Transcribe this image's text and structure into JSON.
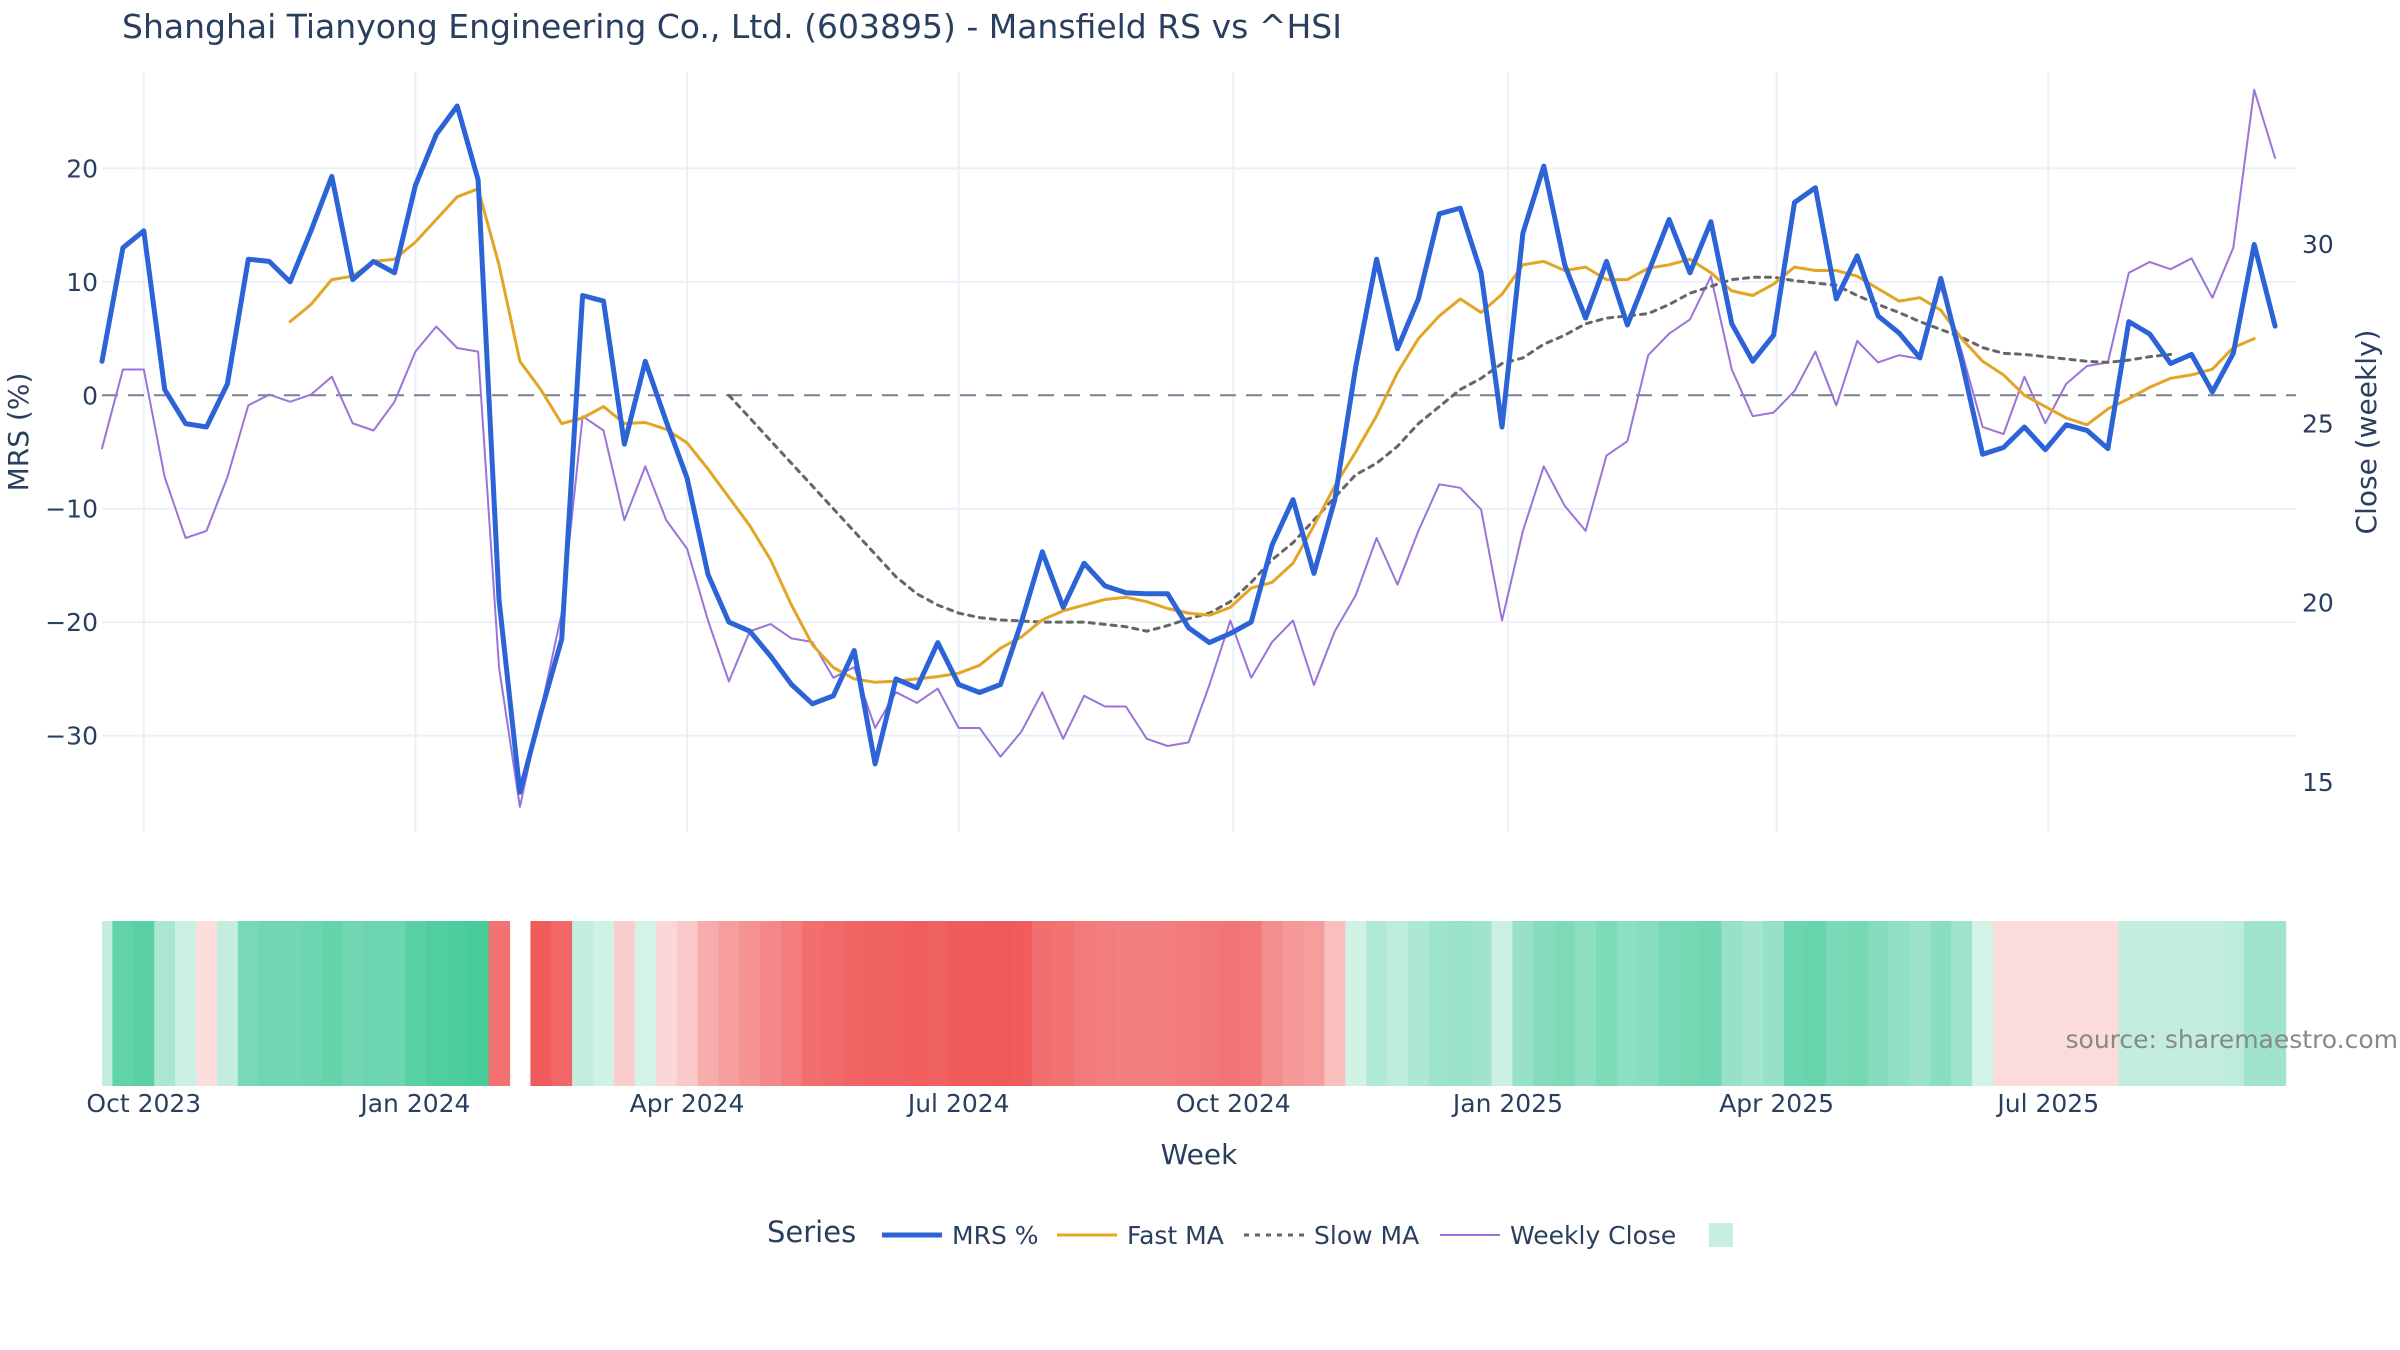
{
  "chart_data": {
    "type": "line",
    "title": "Shanghai Tianyong Engineering Co., Ltd. (603895) - Mansfield RS vs ^HSI",
    "xlabel": "Week",
    "ylabel_left": "MRS (%)",
    "ylabel_right": "Close (weekly)",
    "source": "source: sharemaestro.com",
    "legend_title": "Series",
    "legend_placement": "bottom",
    "grid": true,
    "x_range": [
      "2023-09-18",
      "2025-09-22"
    ],
    "x_ticks": [
      {
        "date": "2023-10-02",
        "label": "Oct 2023"
      },
      {
        "date": "2024-01-01",
        "label": "Jan 2024"
      },
      {
        "date": "2024-04-01",
        "label": "Apr 2024"
      },
      {
        "date": "2024-07-01",
        "label": "Jul 2024"
      },
      {
        "date": "2024-10-01",
        "label": "Oct 2024"
      },
      {
        "date": "2025-01-01",
        "label": "Jan 2025"
      },
      {
        "date": "2025-04-01",
        "label": "Apr 2025"
      },
      {
        "date": "2025-07-01",
        "label": "Jul 2025"
      }
    ],
    "y_left": {
      "range": [
        -38.5,
        28.5
      ],
      "ticks": [
        -30,
        -20,
        -10,
        0,
        10,
        20
      ],
      "tick_labels": [
        "−30",
        "−20",
        "−10",
        "0",
        "10",
        "20"
      ]
    },
    "y_right": {
      "range": [
        13.6,
        34.8
      ],
      "ticks": [
        15,
        20,
        25,
        30
      ],
      "tick_labels": [
        "15",
        "20",
        "25",
        "30"
      ]
    },
    "start_date": "2023-09-18",
    "series": [
      {
        "name": "MRS %",
        "color": "#2c63d6",
        "axis": "left",
        "style": "solid",
        "values": [
          3,
          13,
          14.5,
          0.5,
          -2.5,
          -2.8,
          1,
          12,
          11.8,
          10,
          14.5,
          19.3,
          10.2,
          11.8,
          10.8,
          18.5,
          23,
          25.5,
          19,
          -18,
          -35,
          -28,
          -21.5,
          8.8,
          8.3,
          -4.3,
          3,
          -2.3,
          -7.3,
          -15.8,
          -20,
          -20.8,
          -23,
          -25.5,
          -27.2,
          -26.5,
          -22.5,
          -32.5,
          -25,
          -25.8,
          -21.8,
          -25.5,
          -26.2,
          -25.5,
          -20,
          -13.8,
          -18.7,
          -14.8,
          -16.8,
          -17.4,
          -17.5,
          -17.5,
          -20.5,
          -21.8,
          -21,
          -20,
          -13.2,
          -9.2,
          -15.7,
          -9.2,
          2.5,
          12,
          4.1,
          8.5,
          16,
          16.5,
          10.8,
          -2.8,
          14.3,
          20.2,
          11.5,
          6.8,
          11.8,
          6.2,
          10.8,
          15.5,
          10.8,
          15.3,
          6.3,
          3,
          5.3,
          17,
          18.3,
          8.5,
          12.3,
          7,
          5.5,
          3.3,
          10.3,
          3,
          -5.2,
          -4.6,
          -2.8,
          -4.8,
          -2.6,
          -3.1,
          -4.7,
          6.5,
          5.4,
          2.8,
          3.6,
          0.3,
          3.7,
          13.3,
          6.1
        ]
      },
      {
        "name": "Fast MA",
        "color": "#e3a526",
        "axis": "left",
        "style": "solid",
        "start_index": 9,
        "values": [
          6.5,
          8,
          10.2,
          10.5,
          11.8,
          12,
          13.5,
          15.5,
          17.5,
          18.2,
          11.5,
          3,
          0.5,
          -2.5,
          -2,
          -1,
          -2.5,
          -2.4,
          -3,
          -4.2,
          -6.5,
          -9,
          -11.5,
          -14.5,
          -18.5,
          -22,
          -24,
          -25,
          -25.3,
          -25.2,
          -25,
          -24.8,
          -24.5,
          -23.8,
          -22.3,
          -21.3,
          -19.8,
          -19,
          -18.5,
          -18,
          -17.8,
          -18.2,
          -18.8,
          -19.2,
          -19.4,
          -18.7,
          -17,
          -16.5,
          -14.8,
          -11.5,
          -8,
          -5,
          -1.8,
          2,
          5,
          7,
          8.5,
          7.3,
          8.9,
          11.5,
          11.8,
          11,
          11.3,
          10.2,
          10.2,
          11.2,
          11.5,
          12,
          10.8,
          9.2,
          8.8,
          9.8,
          11.3,
          11,
          11,
          10.5,
          9.4,
          8.3,
          8.6,
          7.5,
          5,
          3,
          1.8,
          0,
          -1,
          -2,
          -2.6,
          -1.2,
          -0.3,
          0.7,
          1.5,
          1.8,
          2.3,
          4.2,
          5
        ]
      },
      {
        "name": "Slow MA",
        "color": "#666666",
        "axis": "left",
        "style": "dashed",
        "start_index": 30,
        "values": [
          0,
          -2,
          -4,
          -6,
          -8,
          -10,
          -12,
          -14,
          -16,
          -17.5,
          -18.5,
          -19.2,
          -19.6,
          -19.8,
          -19.9,
          -20,
          -20,
          -20,
          -20.2,
          -20.4,
          -20.8,
          -20.3,
          -19.7,
          -19.2,
          -18.2,
          -16.5,
          -14.5,
          -13,
          -11,
          -9,
          -7,
          -6,
          -4.5,
          -2.5,
          -1,
          0.5,
          1.5,
          2.8,
          3.3,
          4.5,
          5.3,
          6.3,
          6.8,
          7,
          7.2,
          8,
          9,
          9.6,
          10.2,
          10.4,
          10.4,
          10.1,
          9.9,
          9.7,
          8.8,
          8,
          7.3,
          6.5,
          5.8,
          5.1,
          4.2,
          3.7,
          3.6,
          3.4,
          3.2,
          3,
          2.9,
          3.1,
          3.4,
          3.6
        ]
      },
      {
        "name": "Weekly Close",
        "color": "#9a74d8",
        "axis": "right",
        "style": "solid",
        "values": [
          24.3,
          26.5,
          26.5,
          23.5,
          21.8,
          22,
          23.5,
          25.5,
          25.8,
          25.6,
          25.8,
          26.3,
          25,
          24.8,
          25.6,
          27,
          27.7,
          27.1,
          27,
          18.2,
          14.3,
          17,
          19.7,
          25.2,
          24.8,
          22.3,
          23.8,
          22.3,
          21.5,
          19.5,
          17.8,
          19.2,
          19.4,
          19,
          18.9,
          17.9,
          18.2,
          16.5,
          17.5,
          17.2,
          17.6,
          16.5,
          16.5,
          15.7,
          16.4,
          17.5,
          16.2,
          17.4,
          17.1,
          17.1,
          16.2,
          16,
          16.1,
          17.7,
          19.5,
          17.9,
          18.9,
          19.5,
          17.7,
          19.2,
          20.2,
          21.8,
          20.5,
          22,
          23.3,
          23.2,
          22.6,
          19.5,
          22,
          23.8,
          22.7,
          22,
          24.1,
          24.5,
          26.9,
          27.5,
          27.9,
          29.1,
          26.5,
          25.2,
          25.3,
          25.9,
          27,
          25.5,
          27.3,
          26.7,
          26.9,
          26.8,
          28.8,
          27,
          24.9,
          24.7,
          26.3,
          25,
          26.1,
          26.6,
          26.7,
          29.2,
          29.5,
          29.3,
          29.6,
          28.5,
          29.9,
          34.3,
          32.4
        ]
      }
    ],
    "rs_heatmap": {
      "description_colors": {
        "positive": "#3ec996",
        "negative": "#ef5656"
      },
      "values": [
        0.8,
        3.9,
        4.1,
        1.6,
        0.6,
        -0.1,
        0.8,
        3.2,
        3.4,
        3.4,
        3.5,
        3.8,
        3.4,
        3.6,
        3.5,
        4.1,
        4.4,
        4.6,
        4.7,
        -4.0,
        null,
        -4.8,
        -4.4,
        0.8,
        0.4,
        -0.7,
        0.3,
        -0.3,
        -0.8,
        -1.9,
        -2.4,
        -2.8,
        -3.2,
        -3.6,
        -4.1,
        -4.3,
        -4.5,
        -4.6,
        -4.6,
        -4.7,
        -4.6,
        -4.8,
        -4.8,
        -4.9,
        -4.8,
        -4.1,
        -4.0,
        -3.7,
        -3.6,
        -3.5,
        -3.5,
        -3.6,
        -3.7,
        -3.8,
        -3.9,
        -3.8,
        -3.0,
        -2.6,
        -2.4,
        -1.2,
        0.4,
        1.4,
        1.0,
        1.5,
        2.0,
        2.1,
        1.9,
        0.6,
        2.2,
        2.8,
        3.0,
        2.5,
        3.0,
        2.5,
        2.7,
        3.2,
        3.3,
        3.4,
        2.2,
        1.8,
        2.2,
        3.6,
        3.7,
        3.1,
        3.3,
        2.8,
        2.4,
        2.1,
        2.6,
        2.0,
        0.3,
        -0.2,
        -0.2,
        -0.2,
        -0.2,
        -0.2,
        -0.2,
        0.8,
        0.8,
        0.8,
        0.8,
        0.8,
        1.0,
        1.9,
        1.9
      ]
    }
  }
}
